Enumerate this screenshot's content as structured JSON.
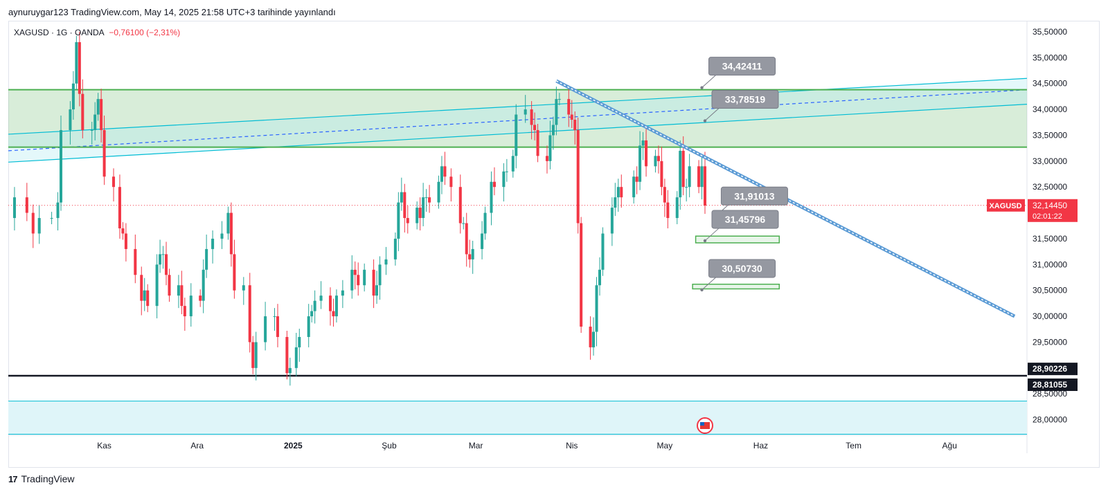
{
  "header": {
    "published_text": "aynuruygar123 TradingView.com, May 14, 2025 21:58 UTC+3 tarihinde yayınlandı",
    "symbol_line": "XAGUSD · 1G · OANDA",
    "change_text": "−0,76100 (−2,31%)"
  },
  "footer": {
    "logo_text": "TradingView"
  },
  "colors": {
    "up": "#26a69a",
    "down": "#f23645",
    "zone": "#4caf50",
    "channel": "#00bcd4",
    "trend": "#5b9bd5"
  },
  "chart_data": {
    "type": "candlestick",
    "symbol": "XAGUSD",
    "interval": "1G",
    "source": "OANDA",
    "ylim": [
      27.7,
      35.7
    ],
    "y_ticks": [
      "35,50000",
      "35,00000",
      "34,50000",
      "34,00000",
      "33,50000",
      "33,00000",
      "32,50000",
      "32,00000",
      "31,50000",
      "31,00000",
      "30,50000",
      "30,00000",
      "29,50000",
      "29,00000",
      "28,50000",
      "28,00000"
    ],
    "y_tick_values": [
      35.5,
      35.0,
      34.5,
      34.0,
      33.5,
      33.0,
      32.5,
      32.0,
      31.5,
      31.0,
      30.5,
      30.0,
      29.5,
      29.0,
      28.5,
      28.0
    ],
    "x_labels": [
      {
        "label": "Kas",
        "date": "2024-11-01",
        "bold": false
      },
      {
        "label": "Ara",
        "date": "2024-12-01",
        "bold": false
      },
      {
        "label": "2025",
        "date": "2025-01-01",
        "bold": true
      },
      {
        "label": "Şub",
        "date": "2025-02-01",
        "bold": false
      },
      {
        "label": "Mar",
        "date": "2025-03-01",
        "bold": false
      },
      {
        "label": "Nis",
        "date": "2025-04-01",
        "bold": false
      },
      {
        "label": "May",
        "date": "2025-05-01",
        "bold": false
      },
      {
        "label": "Haz",
        "date": "2025-06-01",
        "bold": false
      },
      {
        "label": "Tem",
        "date": "2025-07-01",
        "bold": false
      },
      {
        "label": "Ağu",
        "date": "2025-08-01",
        "bold": false
      }
    ],
    "x_range": [
      "2024-10-01",
      "2025-08-26"
    ],
    "closes": [
      [
        "2024-10-01",
        31.9
      ],
      [
        "2024-10-03",
        32.3
      ],
      [
        "2024-10-07",
        32.0
      ],
      [
        "2024-10-09",
        31.6
      ],
      [
        "2024-10-11",
        31.9
      ],
      [
        "2024-10-15",
        31.9
      ],
      [
        "2024-10-17",
        32.2
      ],
      [
        "2024-10-18",
        33.6
      ],
      [
        "2024-10-21",
        34.0
      ],
      [
        "2024-10-22",
        34.5
      ],
      [
        "2024-10-23",
        35.3
      ],
      [
        "2024-10-24",
        34.3
      ],
      [
        "2024-10-25",
        33.6
      ],
      [
        "2024-10-28",
        33.6
      ],
      [
        "2024-10-29",
        33.9
      ],
      [
        "2024-10-30",
        34.2
      ],
      [
        "2024-10-31",
        33.6
      ],
      [
        "2024-11-01",
        32.7
      ],
      [
        "2024-11-04",
        32.5
      ],
      [
        "2024-11-06",
        31.7
      ],
      [
        "2024-11-07",
        31.6
      ],
      [
        "2024-11-08",
        31.3
      ],
      [
        "2024-11-11",
        30.8
      ],
      [
        "2024-11-13",
        30.3
      ],
      [
        "2024-11-14",
        30.5
      ],
      [
        "2024-11-15",
        30.2
      ],
      [
        "2024-11-18",
        31.0
      ],
      [
        "2024-11-19",
        31.2
      ],
      [
        "2024-11-20",
        31.2
      ],
      [
        "2024-11-21",
        30.8
      ],
      [
        "2024-11-22",
        30.4
      ],
      [
        "2024-11-25",
        30.6
      ],
      [
        "2024-11-26",
        30.2
      ],
      [
        "2024-11-27",
        30.0
      ],
      [
        "2024-11-29",
        30.4
      ],
      [
        "2024-12-02",
        30.3
      ],
      [
        "2024-12-03",
        30.9
      ],
      [
        "2024-12-04",
        31.3
      ],
      [
        "2024-12-06",
        31.5
      ],
      [
        "2024-12-09",
        31.6
      ],
      [
        "2024-12-11",
        32.0
      ],
      [
        "2024-12-12",
        31.2
      ],
      [
        "2024-12-13",
        30.5
      ],
      [
        "2024-12-16",
        30.6
      ],
      [
        "2024-12-18",
        29.5
      ],
      [
        "2024-12-19",
        29.0
      ],
      [
        "2024-12-20",
        29.5
      ],
      [
        "2024-12-23",
        30.0
      ],
      [
        "2024-12-26",
        30.0
      ],
      [
        "2024-12-27",
        29.6
      ],
      [
        "2024-12-30",
        28.9
      ],
      [
        "2024-12-31",
        29.0
      ],
      [
        "2025-01-02",
        29.4
      ],
      [
        "2025-01-03",
        29.6
      ],
      [
        "2025-01-06",
        30.0
      ],
      [
        "2025-01-07",
        30.1
      ],
      [
        "2025-01-08",
        30.3
      ],
      [
        "2025-01-10",
        30.4
      ],
      [
        "2025-01-13",
        30.1
      ],
      [
        "2025-01-14",
        30.0
      ],
      [
        "2025-01-15",
        30.4
      ],
      [
        "2025-01-17",
        30.5
      ],
      [
        "2025-01-20",
        30.9
      ],
      [
        "2025-01-21",
        30.8
      ],
      [
        "2025-01-22",
        30.6
      ],
      [
        "2025-01-24",
        30.9
      ],
      [
        "2025-01-27",
        30.4
      ],
      [
        "2025-01-28",
        30.6
      ],
      [
        "2025-01-29",
        31.0
      ],
      [
        "2025-01-31",
        31.1
      ],
      [
        "2025-02-03",
        31.5
      ],
      [
        "2025-02-04",
        32.2
      ],
      [
        "2025-02-05",
        32.4
      ],
      [
        "2025-02-06",
        31.9
      ],
      [
        "2025-02-07",
        31.8
      ],
      [
        "2025-02-10",
        32.1
      ],
      [
        "2025-02-11",
        31.9
      ],
      [
        "2025-02-12",
        32.3
      ],
      [
        "2025-02-13",
        32.3
      ],
      [
        "2025-02-14",
        32.2
      ],
      [
        "2025-02-17",
        32.6
      ],
      [
        "2025-02-18",
        32.9
      ],
      [
        "2025-02-19",
        32.7
      ],
      [
        "2025-02-21",
        32.5
      ],
      [
        "2025-02-24",
        31.8
      ],
      [
        "2025-02-25",
        31.8
      ],
      [
        "2025-02-26",
        31.2
      ],
      [
        "2025-02-27",
        31.1
      ],
      [
        "2025-02-28",
        31.3
      ],
      [
        "2025-03-03",
        31.6
      ],
      [
        "2025-03-04",
        32.0
      ],
      [
        "2025-03-06",
        32.6
      ],
      [
        "2025-03-07",
        32.5
      ],
      [
        "2025-03-10",
        32.8
      ],
      [
        "2025-03-11",
        32.8
      ],
      [
        "2025-03-13",
        33.1
      ],
      [
        "2025-03-14",
        33.9
      ],
      [
        "2025-03-17",
        34.0
      ],
      [
        "2025-03-19",
        33.7
      ],
      [
        "2025-03-20",
        33.6
      ],
      [
        "2025-03-21",
        33.1
      ],
      [
        "2025-03-24",
        33.0
      ],
      [
        "2025-03-25",
        33.5
      ],
      [
        "2025-03-26",
        33.7
      ],
      [
        "2025-03-27",
        34.2
      ],
      [
        "2025-03-28",
        34.2
      ],
      [
        "2025-03-31",
        33.9
      ],
      [
        "2025-04-01",
        33.8
      ],
      [
        "2025-04-02",
        33.6
      ],
      [
        "2025-04-03",
        31.8
      ],
      [
        "2025-04-04",
        29.8
      ],
      [
        "2025-04-07",
        29.4
      ],
      [
        "2025-04-08",
        29.7
      ],
      [
        "2025-04-09",
        30.6
      ],
      [
        "2025-04-10",
        30.9
      ],
      [
        "2025-04-11",
        31.6
      ],
      [
        "2025-04-14",
        32.1
      ],
      [
        "2025-04-15",
        32.3
      ],
      [
        "2025-04-16",
        32.5
      ],
      [
        "2025-04-17",
        32.3
      ],
      [
        "2025-04-21",
        32.7
      ],
      [
        "2025-04-22",
        32.6
      ],
      [
        "2025-04-23",
        33.3
      ],
      [
        "2025-04-24",
        33.4
      ],
      [
        "2025-04-25",
        32.9
      ],
      [
        "2025-04-28",
        33.1
      ],
      [
        "2025-04-29",
        33.0
      ],
      [
        "2025-04-30",
        32.5
      ],
      [
        "2025-05-01",
        32.2
      ],
      [
        "2025-05-02",
        31.9
      ],
      [
        "2025-05-05",
        32.3
      ],
      [
        "2025-05-06",
        33.2
      ],
      [
        "2025-05-07",
        32.5
      ],
      [
        "2025-05-08",
        32.5
      ],
      [
        "2025-05-09",
        32.9
      ],
      [
        "2025-05-12",
        32.5
      ],
      [
        "2025-05-13",
        32.9
      ],
      [
        "2025-05-14",
        32.14
      ]
    ],
    "horizontal_lines": [
      {
        "price": 34.38,
        "color": "green",
        "label": ""
      },
      {
        "price": 33.27,
        "color": "green",
        "label": ""
      },
      {
        "price": 28.85,
        "color": "black",
        "label": ""
      },
      {
        "price": 28.36,
        "color": "cyan",
        "label": ""
      },
      {
        "price": 27.72,
        "color": "cyan",
        "label": ""
      }
    ],
    "zones": [
      {
        "type": "support-box",
        "start_date": "2025-05-11",
        "end_date": "2025-06-07",
        "top": 31.55,
        "bottom": 31.42
      },
      {
        "type": "support-box",
        "start_date": "2025-05-10",
        "end_date": "2025-06-07",
        "top": 30.62,
        "bottom": 30.53
      }
    ],
    "trend_line": {
      "start_date": "2025-03-27",
      "start_price": 34.55,
      "end_date": "2025-08-22",
      "end_price": 30.0
    },
    "channel": {
      "start_date": "2024-10-01",
      "end_date": "2025-08-26",
      "upper": [
        33.52,
        34.6
      ],
      "mid": [
        33.2,
        34.38
      ],
      "lower": [
        32.98,
        34.1
      ]
    },
    "callouts": [
      {
        "text": "34,42411",
        "date": "2025-05-13",
        "price": 34.42
      },
      {
        "text": "33,78519",
        "date": "2025-05-14",
        "price": 33.78
      },
      {
        "text": "31,91013",
        "date": "2025-05-17",
        "price": 31.91
      },
      {
        "text": "31,45796",
        "date": "2025-05-14",
        "price": 31.46
      },
      {
        "text": "30,50730",
        "date": "2025-05-13",
        "price": 30.51
      }
    ],
    "axis_tags": [
      {
        "label": "XAGUSD",
        "value": "32,14450",
        "sub": "02:01:22",
        "price": 32.1445,
        "bg": "#f23645"
      },
      {
        "value": "28,90226",
        "price": 28.90226,
        "bg": "#131722"
      },
      {
        "value": "28,81055",
        "price": 28.81055,
        "bg": "#131722"
      }
    ],
    "last_price": 32.1445
  }
}
